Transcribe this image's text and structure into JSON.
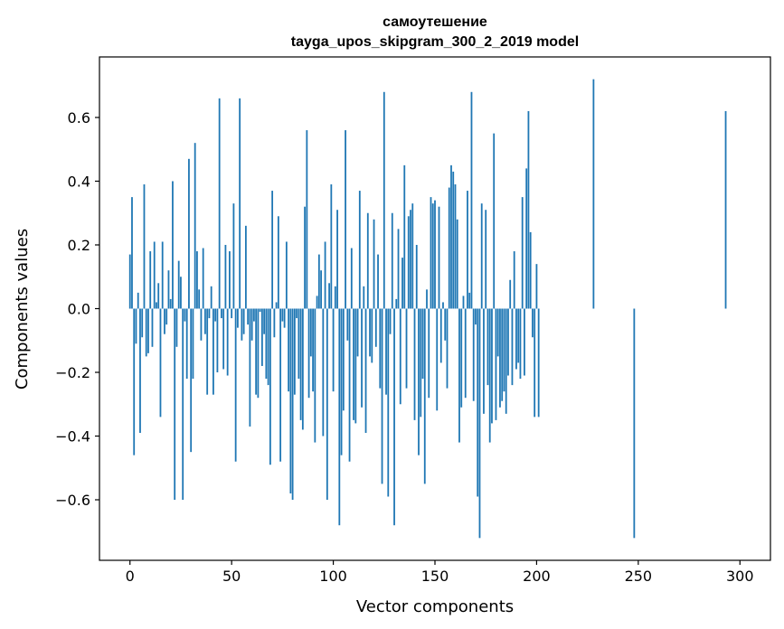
{
  "chart_data": {
    "type": "bar",
    "title": "самоутешение",
    "subtitle": "tayga_upos_skipgram_300_2_2019 model",
    "xlabel": "Vector components",
    "ylabel": "Components values",
    "xlim": [
      -15,
      315
    ],
    "ylim": [
      -0.79,
      0.79
    ],
    "xticks": [
      0,
      50,
      100,
      150,
      200,
      250,
      300
    ],
    "xtick_labels": [
      "0",
      "50",
      "100",
      "150",
      "200",
      "250",
      "300"
    ],
    "yticks": [
      -0.6,
      -0.4,
      -0.2,
      0.0,
      0.2,
      0.4,
      0.6
    ],
    "ytick_labels": [
      "−0.6",
      "−0.4",
      "−0.2",
      "0.0",
      "0.2",
      "0.4",
      "0.6"
    ],
    "bar_color": "#1f77b4",
    "grid": false,
    "x_start": 0,
    "values": [
      0.17,
      0.35,
      -0.46,
      -0.11,
      0.05,
      -0.39,
      -0.09,
      0.39,
      -0.15,
      -0.14,
      0.18,
      -0.12,
      0.21,
      0.02,
      0.08,
      -0.34,
      0.21,
      -0.08,
      -0.05,
      0.12,
      0.03,
      0.4,
      -0.6,
      -0.12,
      0.15,
      0.1,
      0.22,
      -0.04,
      -0.22,
      0.47,
      -0.45,
      -0.22,
      0.52,
      0.18,
      0.06,
      -0.1,
      0.19,
      -0.08,
      -0.27,
      -0.03,
      0.07,
      -0.27,
      -0.04,
      -0.2,
      0.66,
      -0.03,
      -0.19,
      0.2,
      -0.21,
      0.18,
      -0.03,
      0.33,
      -0.48,
      -0.06,
      -0.36,
      -0.1,
      -0.08,
      0.26,
      -0.05,
      -0.37,
      -0.1,
      -0.04,
      -0.27,
      -0.28,
      -0.01,
      -0.18,
      -0.08,
      -0.22,
      -0.24,
      -0.49,
      0.37,
      -0.09,
      0.02,
      0.29,
      -0.48,
      -0.04,
      -0.06,
      0.21,
      -0.26,
      -0.58,
      -0.6,
      -0.27,
      -0.03,
      -0.22,
      -0.35,
      -0.38,
      0.32,
      0.56,
      -0.28,
      -0.15,
      -0.26,
      -0.42,
      0.04,
      0.17,
      0.12,
      -0.4,
      0.21,
      -0.11,
      0.08,
      0.39,
      -0.26,
      0.07,
      0.31,
      -0.68,
      -0.46,
      -0.32,
      -0.28,
      -0.1,
      -0.48,
      0.19,
      -0.35,
      -0.36,
      -0.15,
      0.37,
      -0.31,
      0.07,
      -0.39,
      0.3,
      -0.15,
      -0.17,
      0.28,
      -0.12,
      0.17,
      -0.25,
      -0.55,
      0.68,
      -0.27,
      -0.59,
      -0.08,
      0.3,
      0.06,
      0.03,
      0.25,
      -0.3,
      0.16,
      0.45,
      -0.25,
      0.29,
      0.31,
      0.33,
      -0.35,
      0.2,
      -0.46,
      -0.34,
      -0.22,
      -0.55,
      0.06,
      -0.28,
      0.35,
      0.33,
      0.34,
      -0.32,
      0.32,
      -0.17,
      0.02,
      -0.1,
      -0.25,
      0.38,
      0.45,
      0.43,
      0.39,
      0.28,
      -0.42,
      -0.31,
      0.04,
      -0.28,
      0.37,
      0.05,
      -0.08,
      -0.29,
      -0.05,
      -0.26,
      -0.72,
      0.33,
      -0.33,
      0.31,
      -0.24,
      -0.42,
      -0.36,
      0.55,
      -0.35,
      -0.15,
      -0.31,
      -0.29,
      -0.26,
      -0.33,
      -0.21,
      0.09,
      -0.24,
      0.18,
      -0.19,
      -0.17,
      -0.22,
      0.35,
      -0.21,
      0.44,
      0.62,
      0.24,
      -0.09,
      -0.34,
      0.14,
      -0.34
    ],
    "special_bars": [
      {
        "index": 26,
        "value": -0.6
      },
      {
        "index": 54,
        "value": 0.66
      },
      {
        "index": 97,
        "value": -0.6
      },
      {
        "index": 106,
        "value": 0.56
      },
      {
        "index": 130,
        "value": -0.68
      },
      {
        "index": 168,
        "value": 0.68
      },
      {
        "index": 171,
        "value": -0.59
      },
      {
        "index": 228,
        "value": 0.72
      },
      {
        "index": 248,
        "value": -0.72
      },
      {
        "index": 293,
        "value": 0.62
      }
    ]
  }
}
